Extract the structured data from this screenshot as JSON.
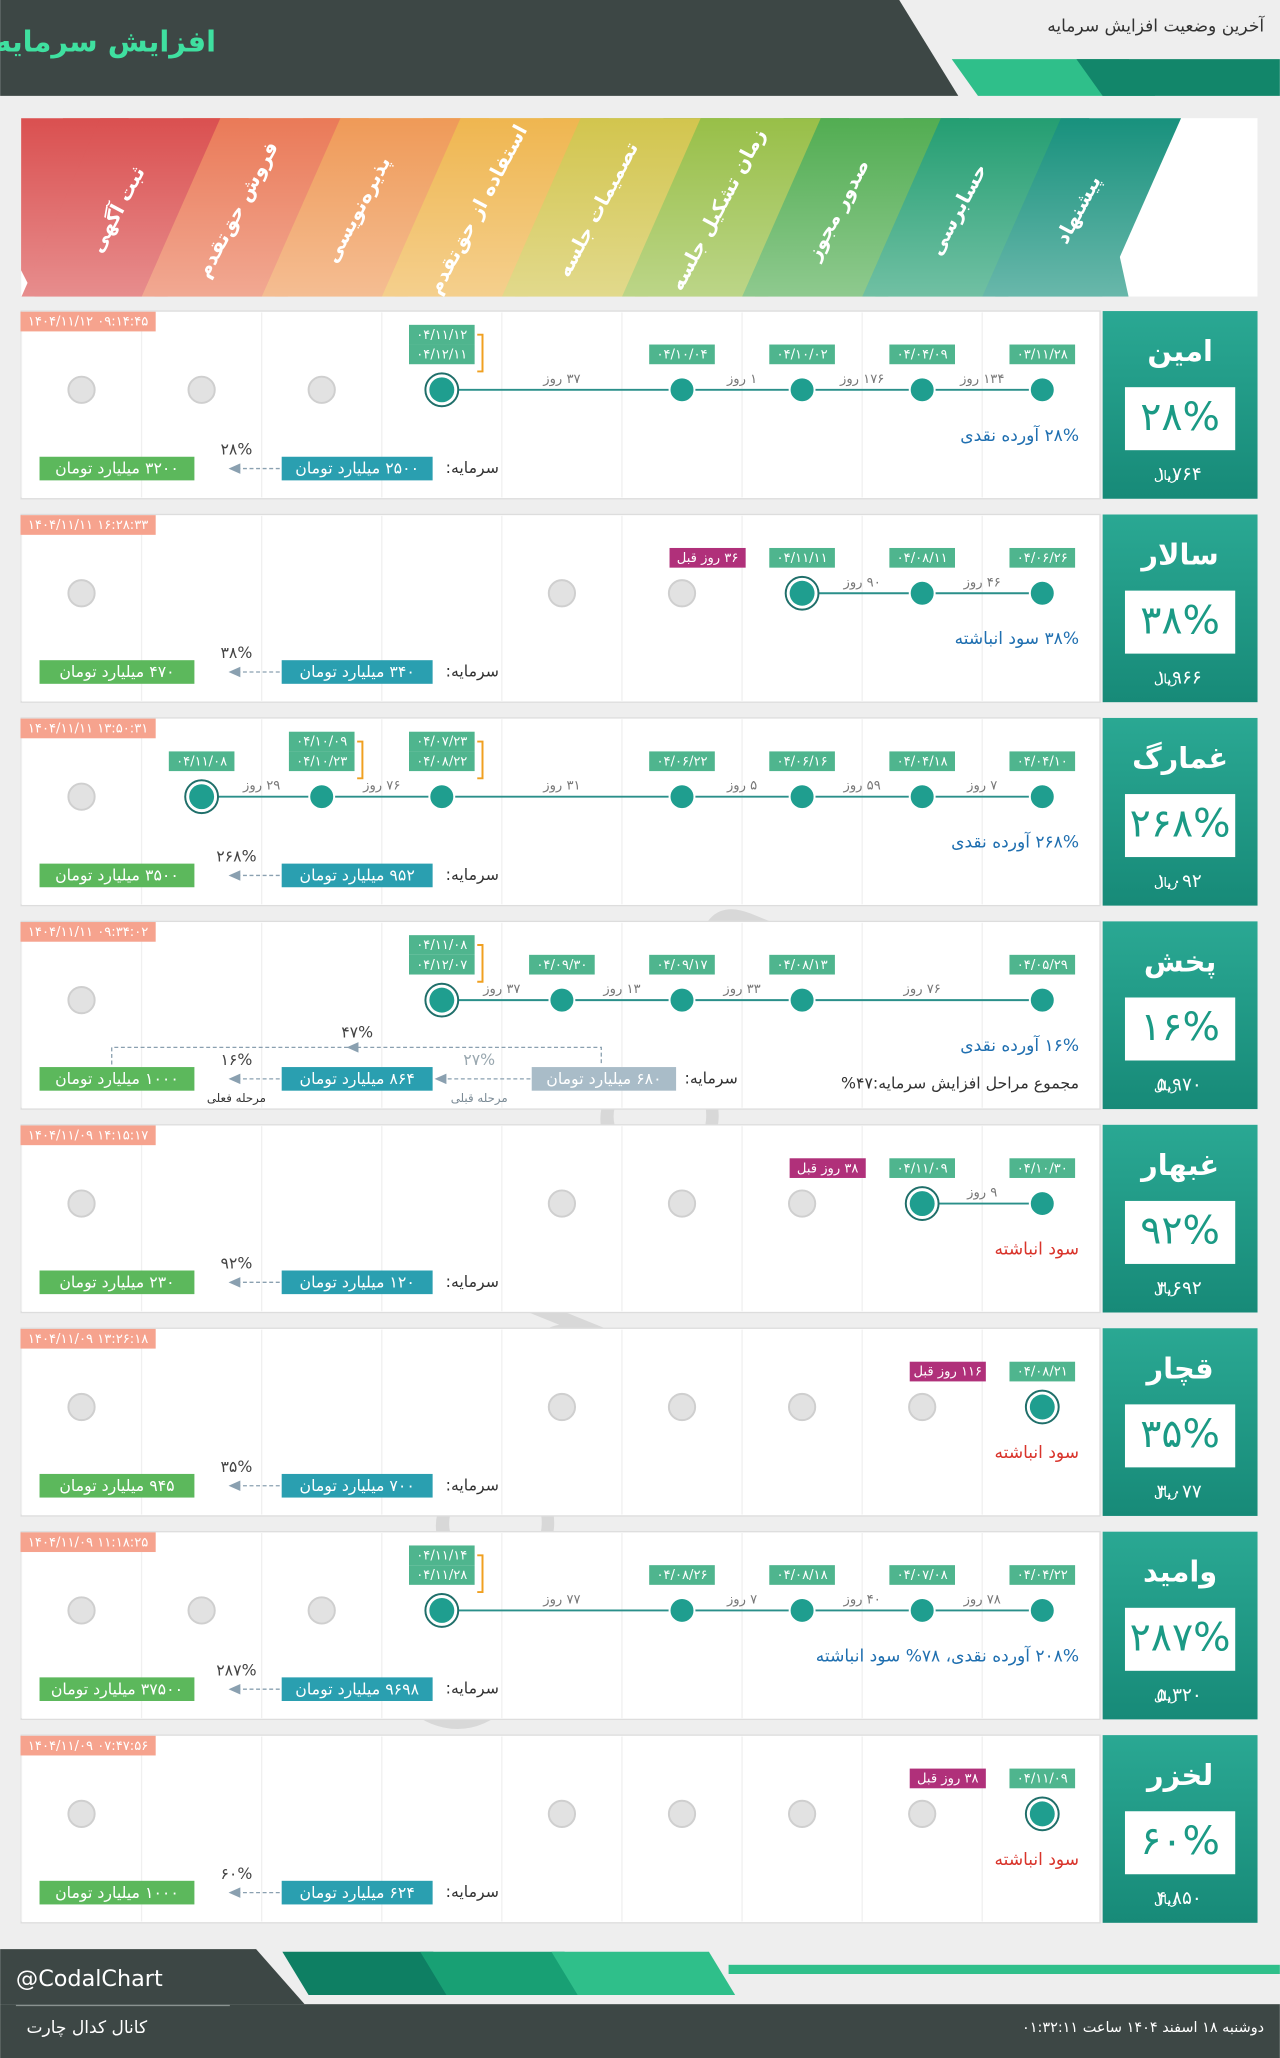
{
  "header": {
    "title": "افزایش سرمایه",
    "subtitle": "آخرین وضعیت افزایش سرمایه"
  },
  "stages": [
    "پیشنهاد",
    "حسابرسی",
    "صدور مجوز",
    "زمان تشکیل جلسه",
    "تصمیمات جلسه",
    "استفاده از حق‌تقدم",
    "پذیره‌نویسی",
    "فروش حق‌تقدم",
    "ثبت آگهی"
  ],
  "stage_colors": [
    "#18917d",
    "#249e72",
    "#52ad52",
    "#98bf48",
    "#d2c54e",
    "#efb650",
    "#ef9a58",
    "#ea7a58",
    "#da5050"
  ],
  "capital_label": "سرمایه:",
  "currency": "ریال",
  "rows": [
    {
      "name": "امین",
      "percent": "۲۸%",
      "price": "۱,۷۶۴",
      "timestamp": "۱۴۰۴/۱۱/۱۲ ۰۹:۱۴:۴۵",
      "nodes": [
        {
          "stage": 0,
          "dates": [
            "۰۳/۱۱/۲۸"
          ]
        },
        {
          "stage": 1,
          "dates": [
            "۰۴/۰۴/۰۹"
          ]
        },
        {
          "stage": 2,
          "dates": [
            "۰۴/۱۰/۰۲"
          ]
        },
        {
          "stage": 3,
          "dates": [
            "۰۴/۱۰/۰۴"
          ]
        },
        {
          "stage": 5,
          "dates": [
            "۰۴/۱۱/۱۲",
            "۰۴/۱۲/۱۱"
          ]
        }
      ],
      "gaps": [
        "۱۳۴ روز",
        "۱۷۶ روز",
        "۱ روز",
        "۳۷ روز"
      ],
      "pending": [
        6,
        7,
        8
      ],
      "note": "۲۸% آورده نقدی",
      "note_color": "#1f6fb0",
      "capital": "۲۵۰۰ میلیارد تومان",
      "new_capital": "۳۲۰۰ میلیارد تومان",
      "increase": "۲۸%"
    },
    {
      "name": "سالار",
      "percent": "۳۸%",
      "price": "۱,۹۶۶",
      "timestamp": "۱۴۰۴/۱۱/۱۱ ۱۶:۲۸:۳۳",
      "nodes": [
        {
          "stage": 0,
          "dates": [
            "۰۴/۰۶/۲۶"
          ]
        },
        {
          "stage": 1,
          "dates": [
            "۰۴/۰۸/۱۱"
          ]
        },
        {
          "stage": 2,
          "dates": [
            "۰۴/۱۱/۱۱"
          ],
          "tag": "۳۶ روز قبل"
        }
      ],
      "gaps": [
        "۴۶ روز",
        "۹۰ روز"
      ],
      "pending": [
        3,
        4,
        8
      ],
      "note": "۳۸% سود انباشته",
      "note_color": "#1f6fb0",
      "capital": "۳۴۰ میلیارد تومان",
      "new_capital": "۴۷۰ میلیارد تومان",
      "increase": "۳۸%"
    },
    {
      "name": "غمارگ",
      "percent": "۲۶۸%",
      "price": "۱,۰۹۲",
      "timestamp": "۱۴۰۴/۱۱/۱۱ ۱۳:۵۰:۳۱",
      "nodes": [
        {
          "stage": 0,
          "dates": [
            "۰۴/۰۴/۱۰"
          ]
        },
        {
          "stage": 1,
          "dates": [
            "۰۴/۰۴/۱۸"
          ]
        },
        {
          "stage": 2,
          "dates": [
            "۰۴/۰۶/۱۶"
          ]
        },
        {
          "stage": 3,
          "dates": [
            "۰۴/۰۶/۲۲"
          ]
        },
        {
          "stage": 5,
          "dates": [
            "۰۴/۰۷/۲۳",
            "۰۴/۰۸/۲۲"
          ]
        },
        {
          "stage": 6,
          "dates": [
            "۰۴/۱۰/۰۹",
            "۰۴/۱۰/۲۳"
          ]
        },
        {
          "stage": 7,
          "dates": [
            "۰۴/۱۱/۰۸"
          ]
        }
      ],
      "gaps": [
        "۷ روز",
        "۵۹ روز",
        "۵ روز",
        "۳۱ روز",
        "۷۶ روز",
        "۲۹ روز"
      ],
      "pending": [
        8
      ],
      "note": "۲۶۸% آورده نقدی",
      "note_color": "#1f6fb0",
      "capital": "۹۵۲ میلیارد تومان",
      "new_capital": "۳۵۰۰ میلیارد تومان",
      "increase": "۲۶۸%"
    },
    {
      "name": "پخش",
      "percent": "۱۶%",
      "price": "۵,۹۷۰",
      "timestamp": "۱۴۰۴/۱۱/۱۱ ۰۹:۳۴:۰۲",
      "nodes": [
        {
          "stage": 0,
          "dates": [
            "۰۴/۰۵/۲۹"
          ]
        },
        {
          "stage": 2,
          "dates": [
            "۰۴/۰۸/۱۳"
          ]
        },
        {
          "stage": 3,
          "dates": [
            "۰۴/۰۹/۱۷"
          ]
        },
        {
          "stage": 4,
          "dates": [
            "۰۴/۰۹/۳۰"
          ]
        },
        {
          "stage": 5,
          "dates": [
            "۰۴/۱۱/۰۸",
            "۰۴/۱۲/۰۷"
          ]
        }
      ],
      "gaps": [
        "۷۶ روز",
        "۳۳ روز",
        "۱۳ روز",
        "۳۷ روز"
      ],
      "pending": [
        8
      ],
      "note": "۱۶% آورده نقدی",
      "note_color": "#1f6fb0",
      "total_note": "مجموع مراحل افزایش سرمایه:۴۷%",
      "prev_capital": "۶۸۰ میلیارد تومان",
      "prev_increase": "۲۷%",
      "prev_caption": "مرحله قبلی",
      "current_caption": "مرحله فعلی",
      "total_increase": "۴۷%",
      "capital": "۸۶۴ میلیارد تومان",
      "new_capital": "۱۰۰۰ میلیارد تومان",
      "increase": "۱۶%"
    },
    {
      "name": "غبهار",
      "percent": "۹۲%",
      "price": "۳,۶۹۲",
      "timestamp": "۱۴۰۴/۱۱/۰۹ ۱۴:۱۵:۱۷",
      "nodes": [
        {
          "stage": 0,
          "dates": [
            "۰۴/۱۰/۳۰"
          ]
        },
        {
          "stage": 1,
          "dates": [
            "۰۴/۱۱/۰۹"
          ],
          "tag": "۳۸ روز قبل"
        }
      ],
      "gaps": [
        "۹ روز"
      ],
      "pending": [
        2,
        3,
        4,
        8
      ],
      "note": "سود انباشته",
      "note_color": "#d9342b",
      "capital": "۱۲۰ میلیارد تومان",
      "new_capital": "۲۳۰ میلیارد تومان",
      "increase": "۹۲%"
    },
    {
      "name": "قچار",
      "percent": "۳۵%",
      "price": "۳,۰۷۷",
      "timestamp": "۱۴۰۴/۱۱/۰۹ ۱۳:۲۶:۱۸",
      "nodes": [
        {
          "stage": 0,
          "dates": [
            "۰۴/۰۸/۲۱"
          ],
          "tag": "۱۱۶ روز قبل"
        }
      ],
      "gaps": [],
      "pending": [
        1,
        2,
        3,
        4,
        8
      ],
      "note": "سود انباشته",
      "note_color": "#d9342b",
      "capital": "۷۰۰ میلیارد تومان",
      "new_capital": "۹۴۵ میلیارد تومان",
      "increase": "۳۵%"
    },
    {
      "name": "وامید",
      "percent": "۲۸۷%",
      "price": "۵,۳۲۰",
      "timestamp": "۱۴۰۴/۱۱/۰۹ ۱۱:۱۸:۲۵",
      "nodes": [
        {
          "stage": 0,
          "dates": [
            "۰۴/۰۴/۲۲"
          ]
        },
        {
          "stage": 1,
          "dates": [
            "۰۴/۰۷/۰۸"
          ]
        },
        {
          "stage": 2,
          "dates": [
            "۰۴/۰۸/۱۸"
          ]
        },
        {
          "stage": 3,
          "dates": [
            "۰۴/۰۸/۲۶"
          ]
        },
        {
          "stage": 5,
          "dates": [
            "۰۴/۱۱/۱۴",
            "۰۴/۱۱/۲۸"
          ]
        }
      ],
      "gaps": [
        "۷۸ روز",
        "۴۰ روز",
        "۷ روز",
        "۷۷ روز"
      ],
      "pending": [
        6,
        7,
        8
      ],
      "note": "۲۰۸% آورده نقدی، ۷۸% سود انباشته",
      "note_color": "#1f6fb0",
      "capital": "۹۶۹۸ میلیارد تومان",
      "new_capital": "۳۷۵۰۰ میلیارد تومان",
      "increase": "۲۸۷%"
    },
    {
      "name": "لخزر",
      "percent": "۶۰%",
      "price": "۴,۸۵۰",
      "timestamp": "۱۴۰۴/۱۱/۰۹ ۰۷:۴۷:۵۶",
      "nodes": [
        {
          "stage": 0,
          "dates": [
            "۰۴/۱۱/۰۹"
          ],
          "tag": "۳۸ روز قبل"
        }
      ],
      "gaps": [],
      "pending": [
        1,
        2,
        3,
        4,
        8
      ],
      "note": "سود انباشته",
      "note_color": "#d9342b",
      "capital": "۶۲۴ میلیارد تومان",
      "new_capital": "۱۰۰۰ میلیارد تومان",
      "increase": "۶۰%"
    }
  ],
  "footer": {
    "handle": "@CodalChart",
    "channel": "کانال کدال چارت",
    "datetime": "دوشنبه ۱۸ اسفند ۱۴۰۴ ساعت ۰۱:۳۲:۱۱"
  }
}
